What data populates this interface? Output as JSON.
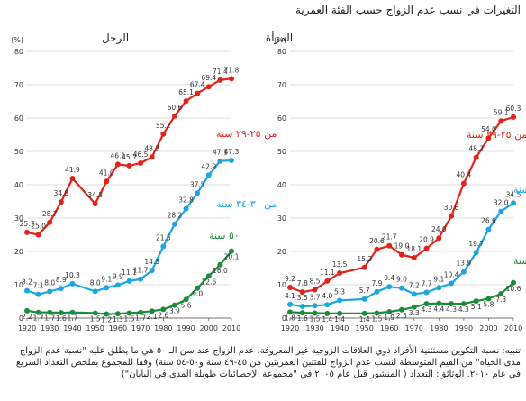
{
  "title": "التغيرات في نسب عدم الزواج حسب الفئة العمرية",
  "footnote": "تنبيه: نسبة التكوين مستثنية الأفراد ذوي العلاقات الزوجية غير المعروفة. عدم الزواج عند سن الـ ٥٠ هي ما يطلق عليه \"نسبة عدم الزواج مدى الحياة\" من القيم المتوسطة لنسب عدم الزواج للفئتين العمريتين من ٤٥-٤٩ سنة و٥٠-٥٤ سنة) وفقا للمجموع بملخص التعداد السريع في عام ٢٠١٠. الوثائق: التعداد ( المنشور قبل عام ٢٠٠٥ في \"مجموعة الإحصائيات طويلة المدى في اليابان\")",
  "colors": {
    "red": "#e2231a",
    "cyan": "#1aa7e0",
    "green": "#1a8c3a"
  },
  "chart_data": [
    {
      "type": "line",
      "title": "المرأة",
      "ylabel": "(%)",
      "ylim": [
        0,
        80
      ],
      "yticks": [
        0,
        10,
        20,
        30,
        40,
        50,
        60,
        70,
        80
      ],
      "xticks": [
        "1920",
        "1930",
        "1940",
        "1950",
        "1960",
        "1970",
        "1980",
        "1990",
        "2000",
        "2010"
      ],
      "x": [
        1920,
        1925,
        1930,
        1935,
        1940,
        1950,
        1955,
        1960,
        1965,
        1970,
        1975,
        1980,
        1985,
        1990,
        1995,
        2000,
        2005,
        2010
      ],
      "series": [
        {
          "name": "من ٢٥-٢٩ سنة",
          "color": "red",
          "values": [
            9.2,
            7.8,
            8.5,
            11.1,
            13.5,
            15.2,
            20.6,
            21.7,
            19.0,
            18.1,
            20.9,
            24.0,
            30.6,
            40.4,
            48.2,
            54.0,
            59.1,
            60.3
          ],
          "labels": [
            "9.2",
            "7.8",
            "8.5",
            "11.1",
            "13.5",
            "15.2",
            "20.6",
            "21.7",
            "19.0",
            "18.1",
            "20.9",
            "24.0",
            "30.6",
            "40.4",
            "48.2",
            "54.0",
            "59.1",
            "60.3"
          ]
        },
        {
          "name": "من ٣٠-٣٤ سنة",
          "color": "cyan",
          "values": [
            4.1,
            3.5,
            3.7,
            4.0,
            5.3,
            5.7,
            7.9,
            9.4,
            9.0,
            7.2,
            7.7,
            9.1,
            10.4,
            13.9,
            19.7,
            26.6,
            32.0,
            34.5
          ],
          "labels": [
            "4.1",
            "3.5",
            "3.7",
            "4.0",
            "5.3",
            "5.7",
            "7.9",
            "9.4",
            "9.0",
            "7.2",
            "7.7",
            "9.1",
            "10.4",
            "13.9",
            "19.7",
            "26.6",
            "32.0",
            "34.5"
          ]
        },
        {
          "name": "٥٠ سنة",
          "color": "green",
          "values": [
            1.8,
            1.6,
            1.5,
            1.4,
            1.4,
            1.4,
            1.5,
            1.9,
            2.5,
            3.3,
            4.3,
            4.4,
            4.3,
            4.3,
            5.1,
            5.8,
            7.3,
            10.6
          ],
          "labels": [
            "1.8",
            "1.6",
            "1.5",
            "1.4",
            "1.4",
            "1.4",
            "1.5",
            "1.9",
            "2.5",
            "3.3",
            "4.3",
            "4.4",
            "4.3",
            "4.3",
            "5.1",
            "5.8",
            "7.3",
            "10.6"
          ]
        }
      ]
    },
    {
      "type": "line",
      "title": "الرجل",
      "ylabel": "(%)",
      "ylim": [
        0,
        80
      ],
      "yticks": [
        0,
        10,
        20,
        30,
        40,
        50,
        60,
        70,
        80
      ],
      "xticks": [
        "1920",
        "1930",
        "1940",
        "1950",
        "1960",
        "1970",
        "1980",
        "1990",
        "2000",
        "2010"
      ],
      "x": [
        1920,
        1925,
        1930,
        1935,
        1940,
        1950,
        1955,
        1960,
        1965,
        1970,
        1975,
        1980,
        1985,
        1990,
        1995,
        2000,
        2005,
        2010
      ],
      "series": [
        {
          "name": "من ٢٥-٢٩ سنة",
          "color": "red",
          "values": [
            25.7,
            25.0,
            28.7,
            34.8,
            41.9,
            34.3,
            41.0,
            46.1,
            45.7,
            46.5,
            48.3,
            55.2,
            60.6,
            65.1,
            67.4,
            69.4,
            71.4,
            71.8
          ],
          "labels": [
            "25.7",
            "25.0",
            "28.7",
            "34.8",
            "41.9",
            "34.3",
            "41.0",
            "46.1",
            "45.7",
            "46.5",
            "48.3",
            "55.2",
            "60.6",
            "65.1",
            "67.4",
            "69.4",
            "71.4",
            "71.8"
          ]
        },
        {
          "name": "من ٣٠-٣٤ سنة",
          "color": "cyan",
          "values": [
            8.2,
            7.1,
            8.0,
            8.9,
            10.3,
            8.0,
            9.1,
            9.9,
            11.1,
            11.7,
            14.3,
            21.5,
            28.2,
            32.8,
            37.5,
            42.9,
            47.1,
            47.3
          ],
          "labels": [
            "8.2",
            "7.1",
            "8.0",
            "8.9",
            "10.3",
            "8.0",
            "9.1",
            "9.9",
            "11.1",
            "11.7",
            "14.3",
            "21.5",
            "28.2",
            "32.8",
            "37.5",
            "42.9",
            "47.1",
            "47.3"
          ]
        },
        {
          "name": "٥٠ سنة",
          "color": "green",
          "values": [
            2.2,
            1.7,
            1.7,
            1.6,
            1.7,
            1.5,
            1.2,
            1.3,
            1.5,
            1.7,
            2.1,
            2.6,
            3.9,
            5.6,
            9.0,
            12.6,
            16.0,
            20.1
          ],
          "labels": [
            "2.2",
            "1.7",
            "1.7",
            "1.6",
            "1.7",
            "1.5",
            "1.2",
            "1.3",
            "1.5",
            "1.7",
            "2.1",
            "2.6",
            "3.9",
            "5.6",
            "9.0",
            "12.6",
            "16.0",
            "20.1"
          ]
        }
      ]
    }
  ]
}
